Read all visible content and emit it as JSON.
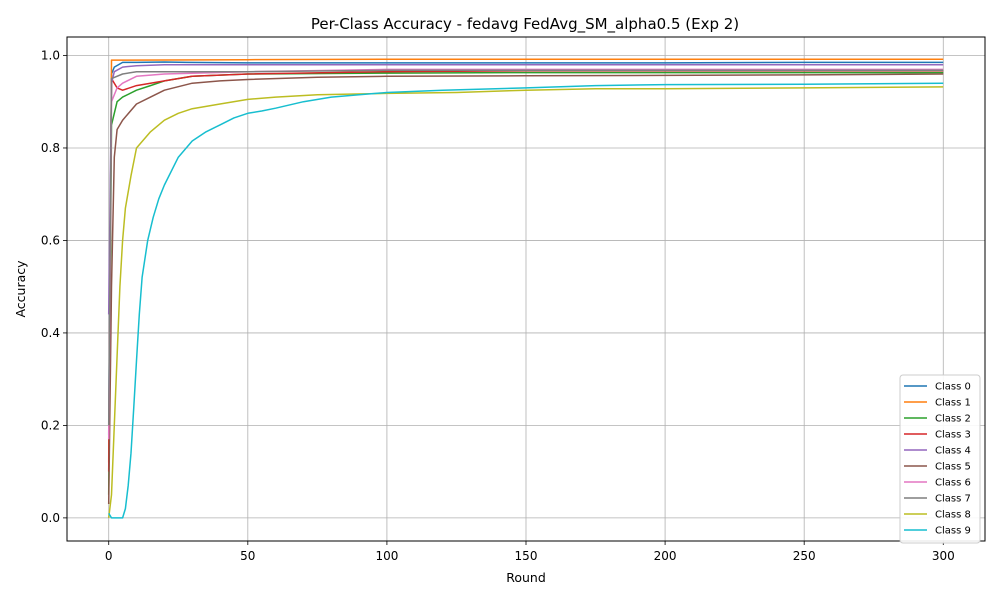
{
  "chart_data": {
    "type": "line",
    "title": "Per-Class Accuracy - fedavg FedAvg_SM_alpha0.5 (Exp 2)",
    "xlabel": "Round",
    "ylabel": "Accuracy",
    "xlim": [
      -15,
      315
    ],
    "ylim": [
      -0.05,
      1.04
    ],
    "xticks": [
      0,
      50,
      100,
      150,
      200,
      250,
      300
    ],
    "yticks": [
      0.0,
      0.2,
      0.4,
      0.6,
      0.8,
      1.0
    ],
    "grid": true,
    "legend_position": "lower-right",
    "series": [
      {
        "name": "Class 0",
        "color": "#1f77b4",
        "points": [
          [
            0,
            0.18
          ],
          [
            1,
            0.96
          ],
          [
            2,
            0.975
          ],
          [
            5,
            0.985
          ],
          [
            10,
            0.985
          ],
          [
            20,
            0.986
          ],
          [
            28,
            0.985
          ],
          [
            50,
            0.984
          ],
          [
            100,
            0.984
          ],
          [
            150,
            0.984
          ],
          [
            200,
            0.984
          ],
          [
            250,
            0.985
          ],
          [
            300,
            0.985
          ]
        ]
      },
      {
        "name": "Class 1",
        "color": "#ff7f0e",
        "points": [
          [
            0,
            0.12
          ],
          [
            1,
            0.99
          ],
          [
            5,
            0.99
          ],
          [
            50,
            0.991
          ],
          [
            100,
            0.992
          ],
          [
            150,
            0.992
          ],
          [
            200,
            0.992
          ],
          [
            250,
            0.992
          ],
          [
            300,
            0.992
          ]
        ]
      },
      {
        "name": "Class 2",
        "color": "#2ca02c",
        "points": [
          [
            0,
            0.05
          ],
          [
            1,
            0.85
          ],
          [
            3,
            0.9
          ],
          [
            5,
            0.91
          ],
          [
            10,
            0.925
          ],
          [
            15,
            0.935
          ],
          [
            20,
            0.945
          ],
          [
            30,
            0.955
          ],
          [
            50,
            0.96
          ],
          [
            100,
            0.962
          ],
          [
            150,
            0.963
          ],
          [
            200,
            0.963
          ],
          [
            250,
            0.963
          ],
          [
            300,
            0.963
          ]
        ]
      },
      {
        "name": "Class 3",
        "color": "#d62728",
        "points": [
          [
            0,
            0.1
          ],
          [
            1,
            0.95
          ],
          [
            3,
            0.93
          ],
          [
            5,
            0.925
          ],
          [
            10,
            0.935
          ],
          [
            20,
            0.945
          ],
          [
            30,
            0.955
          ],
          [
            50,
            0.96
          ],
          [
            100,
            0.965
          ],
          [
            150,
            0.967
          ],
          [
            200,
            0.967
          ],
          [
            250,
            0.967
          ],
          [
            300,
            0.967
          ]
        ]
      },
      {
        "name": "Class 4",
        "color": "#9467bd",
        "points": [
          [
            0,
            0.44
          ],
          [
            1,
            0.94
          ],
          [
            2,
            0.965
          ],
          [
            5,
            0.975
          ],
          [
            10,
            0.978
          ],
          [
            20,
            0.98
          ],
          [
            50,
            0.98
          ],
          [
            100,
            0.98
          ],
          [
            150,
            0.98
          ],
          [
            200,
            0.98
          ],
          [
            250,
            0.98
          ],
          [
            300,
            0.98
          ]
        ]
      },
      {
        "name": "Class 5",
        "color": "#8c564b",
        "points": [
          [
            0,
            0.03
          ],
          [
            1,
            0.5
          ],
          [
            2,
            0.78
          ],
          [
            3,
            0.84
          ],
          [
            5,
            0.86
          ],
          [
            10,
            0.895
          ],
          [
            15,
            0.91
          ],
          [
            20,
            0.925
          ],
          [
            30,
            0.94
          ],
          [
            40,
            0.945
          ],
          [
            50,
            0.948
          ],
          [
            75,
            0.953
          ],
          [
            100,
            0.955
          ],
          [
            150,
            0.956
          ],
          [
            200,
            0.957
          ],
          [
            250,
            0.958
          ],
          [
            300,
            0.96
          ]
        ]
      },
      {
        "name": "Class 6",
        "color": "#e377c2",
        "points": [
          [
            0,
            0.17
          ],
          [
            1,
            0.9
          ],
          [
            3,
            0.93
          ],
          [
            5,
            0.94
          ],
          [
            10,
            0.955
          ],
          [
            20,
            0.96
          ],
          [
            50,
            0.965
          ],
          [
            100,
            0.97
          ],
          [
            150,
            0.97
          ],
          [
            200,
            0.97
          ],
          [
            250,
            0.97
          ],
          [
            300,
            0.97
          ]
        ]
      },
      {
        "name": "Class 7",
        "color": "#7f7f7f",
        "points": [
          [
            0,
            0.2
          ],
          [
            1,
            0.95
          ],
          [
            5,
            0.96
          ],
          [
            10,
            0.965
          ],
          [
            50,
            0.965
          ],
          [
            100,
            0.968
          ],
          [
            150,
            0.968
          ],
          [
            200,
            0.968
          ],
          [
            250,
            0.968
          ],
          [
            300,
            0.968
          ]
        ]
      },
      {
        "name": "Class 8",
        "color": "#bcbd22",
        "points": [
          [
            0,
            0.0
          ],
          [
            1,
            0.05
          ],
          [
            2,
            0.2
          ],
          [
            3,
            0.35
          ],
          [
            4,
            0.5
          ],
          [
            5,
            0.6
          ],
          [
            6,
            0.67
          ],
          [
            8,
            0.74
          ],
          [
            10,
            0.8
          ],
          [
            15,
            0.835
          ],
          [
            20,
            0.86
          ],
          [
            25,
            0.875
          ],
          [
            30,
            0.885
          ],
          [
            40,
            0.895
          ],
          [
            50,
            0.905
          ],
          [
            60,
            0.91
          ],
          [
            75,
            0.915
          ],
          [
            100,
            0.918
          ],
          [
            125,
            0.92
          ],
          [
            150,
            0.925
          ],
          [
            175,
            0.928
          ],
          [
            200,
            0.928
          ],
          [
            250,
            0.93
          ],
          [
            300,
            0.932
          ]
        ]
      },
      {
        "name": "Class 9",
        "color": "#17becf",
        "points": [
          [
            0,
            0.01
          ],
          [
            1,
            0.0
          ],
          [
            5,
            0.0
          ],
          [
            6,
            0.02
          ],
          [
            7,
            0.07
          ],
          [
            8,
            0.14
          ],
          [
            9,
            0.24
          ],
          [
            10,
            0.34
          ],
          [
            11,
            0.44
          ],
          [
            12,
            0.52
          ],
          [
            14,
            0.6
          ],
          [
            16,
            0.65
          ],
          [
            18,
            0.69
          ],
          [
            20,
            0.72
          ],
          [
            25,
            0.78
          ],
          [
            30,
            0.815
          ],
          [
            35,
            0.835
          ],
          [
            40,
            0.85
          ],
          [
            45,
            0.865
          ],
          [
            50,
            0.875
          ],
          [
            55,
            0.88
          ],
          [
            60,
            0.886
          ],
          [
            70,
            0.9
          ],
          [
            80,
            0.91
          ],
          [
            90,
            0.915
          ],
          [
            100,
            0.92
          ],
          [
            120,
            0.925
          ],
          [
            150,
            0.93
          ],
          [
            175,
            0.935
          ],
          [
            200,
            0.937
          ],
          [
            250,
            0.938
          ],
          [
            300,
            0.94
          ]
        ]
      }
    ]
  }
}
